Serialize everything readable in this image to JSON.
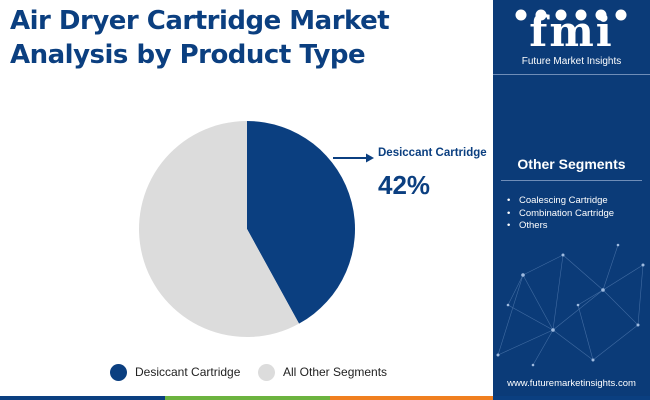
{
  "title": {
    "line1": "Air Dryer Cartridge Market",
    "line2": "Analysis by Product Type"
  },
  "brand": {
    "logo_letters": "fmi",
    "name": "Future Market Insights",
    "website": "www.futuremarketinsights.com"
  },
  "callout": {
    "label": "Desiccant Cartridge",
    "value": "42%"
  },
  "other_segments": {
    "title": "Other Segments",
    "items": [
      "Coalescing Cartridge",
      "Combination Cartridge",
      "Others"
    ]
  },
  "legend": {
    "items": [
      {
        "label": "Desiccant Cartridge",
        "color": "#0b3f80"
      },
      {
        "label": "All Other Segments",
        "color": "#dcdcdc"
      }
    ]
  },
  "chart_data": {
    "type": "pie",
    "title": "Air Dryer Cartridge Market Analysis by Product Type",
    "slices": [
      {
        "label": "Desiccant Cartridge",
        "value": 42,
        "color": "#0b3f80"
      },
      {
        "label": "All Other Segments",
        "value": 58,
        "color": "#dcdcdc"
      }
    ],
    "start": "top",
    "direction": "clockwise",
    "legend_position": "bottom"
  },
  "colors": {
    "brand_navy": "#0b3f80",
    "sidebar_navy": "#0b3b78",
    "bottom_bar": [
      "#0b3f80",
      "#6cb33f",
      "#f07f1f",
      "#0b3f80"
    ]
  }
}
